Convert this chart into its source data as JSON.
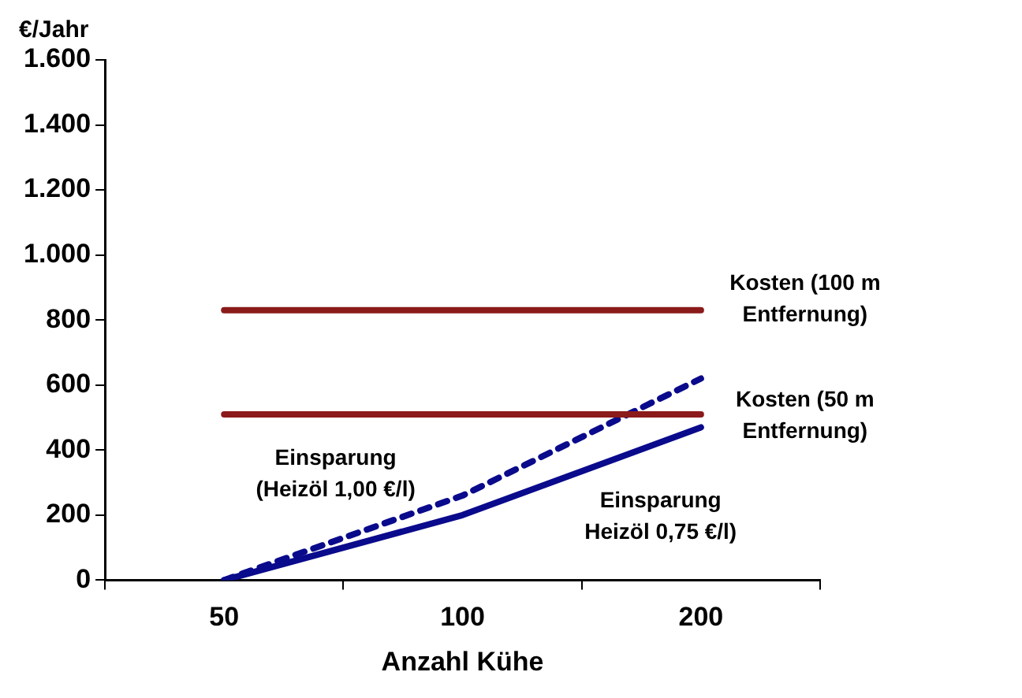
{
  "chart_data": {
    "type": "line",
    "xlabel": "Anzahl Kühe",
    "ylabel": "€/Jahr",
    "categories": [
      "50",
      "100",
      "200"
    ],
    "ylim": [
      0,
      1600
    ],
    "yticks": [
      0,
      200,
      400,
      600,
      800,
      {
        "value": 1000,
        "label": "1.000"
      },
      {
        "value": 1200,
        "label": "1.200"
      },
      {
        "value": 1400,
        "label": "1.400"
      },
      {
        "value": 1600,
        "label": "1.600"
      }
    ],
    "grid": false,
    "legend": false,
    "marker": "none",
    "series": [
      {
        "name": "Kosten (100 m Entfernung)",
        "color": "#8b1a1a",
        "values": [
          830,
          830,
          830
        ],
        "line_style": "solid"
      },
      {
        "name": "Kosten (50 m Entfernung)",
        "color": "#8b1a1a",
        "values": [
          510,
          510,
          510
        ],
        "line_style": "solid"
      },
      {
        "name": "Einsparung (Heizöl 1,00 €/l)",
        "color": "#0a0a8c",
        "values": [
          0,
          260,
          620
        ],
        "line_style": "dashed"
      },
      {
        "name": "Einsparung Heizöl 0,75 €/l)",
        "color": "#0a0a8c",
        "values": [
          0,
          200,
          470
        ],
        "line_style": "solid"
      }
    ]
  }
}
